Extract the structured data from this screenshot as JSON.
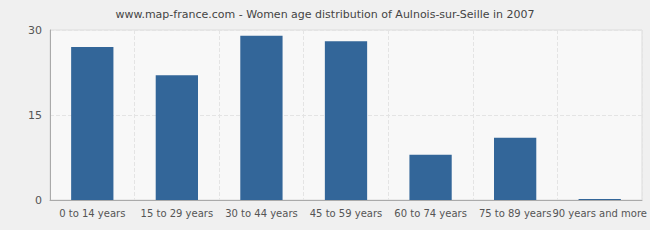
{
  "chart_data": {
    "type": "bar",
    "title": "www.map-france.com - Women age distribution of Aulnois-sur-Seille in 2007",
    "categories": [
      "0 to 14 years",
      "15 to 29 years",
      "30 to 44 years",
      "45 to 59 years",
      "60 to 74 years",
      "75 to 89 years",
      "90 years and more"
    ],
    "values": [
      27,
      22,
      29,
      28,
      8,
      11,
      0
    ],
    "color": "#336699",
    "ylim": [
      0,
      30
    ],
    "yticks": [
      0,
      15,
      30
    ],
    "grid": true
  }
}
